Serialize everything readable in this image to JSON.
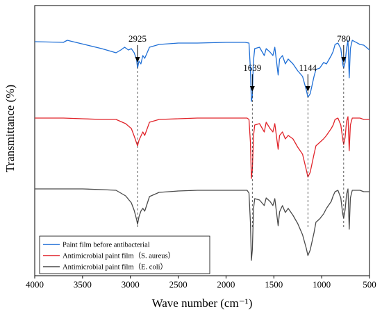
{
  "chart_data": {
    "type": "line",
    "xlabel": "Wave number (cm⁻¹)",
    "ylabel": "Transmittance (%)",
    "xlim": [
      4000,
      500
    ],
    "x_reversed": true,
    "x_ticks": [
      4000,
      3500,
      3000,
      2500,
      2000,
      1500,
      1000,
      500
    ],
    "y_ticks_shown": false,
    "grid": false,
    "legend_position": "bottom-left",
    "series": [
      {
        "name": "Paint film before antibacterial",
        "color": "#1f6fd6",
        "baseline": 60,
        "points": [
          [
            4000,
            60
          ],
          [
            3700,
            61
          ],
          [
            3660,
            58
          ],
          [
            3600,
            60
          ],
          [
            3450,
            65
          ],
          [
            3300,
            70
          ],
          [
            3200,
            74
          ],
          [
            3150,
            76
          ],
          [
            3100,
            72
          ],
          [
            3060,
            68
          ],
          [
            3020,
            72
          ],
          [
            2990,
            70
          ],
          [
            2960,
            76
          ],
          [
            2935,
            86
          ],
          [
            2925,
            98
          ],
          [
            2910,
            88
          ],
          [
            2890,
            92
          ],
          [
            2870,
            80
          ],
          [
            2850,
            84
          ],
          [
            2800,
            68
          ],
          [
            2700,
            64
          ],
          [
            2500,
            62
          ],
          [
            2300,
            62
          ],
          [
            2000,
            61
          ],
          [
            1800,
            61
          ],
          [
            1760,
            62
          ],
          [
            1745,
            100
          ],
          [
            1735,
            146
          ],
          [
            1725,
            140
          ],
          [
            1715,
            90
          ],
          [
            1700,
            70
          ],
          [
            1650,
            68
          ],
          [
            1600,
            80
          ],
          [
            1580,
            70
          ],
          [
            1540,
            75
          ],
          [
            1510,
            80
          ],
          [
            1490,
            68
          ],
          [
            1455,
            108
          ],
          [
            1440,
            85
          ],
          [
            1410,
            80
          ],
          [
            1380,
            92
          ],
          [
            1350,
            85
          ],
          [
            1300,
            92
          ],
          [
            1250,
            102
          ],
          [
            1200,
            110
          ],
          [
            1160,
            130
          ],
          [
            1144,
            140
          ],
          [
            1120,
            135
          ],
          [
            1080,
            110
          ],
          [
            1060,
            100
          ],
          [
            1020,
            98
          ],
          [
            980,
            90
          ],
          [
            950,
            92
          ],
          [
            900,
            80
          ],
          [
            880,
            74
          ],
          [
            860,
            64
          ],
          [
            830,
            62
          ],
          [
            800,
            70
          ],
          [
            780,
            92
          ],
          [
            770,
            98
          ],
          [
            755,
            90
          ],
          [
            740,
            70
          ],
          [
            725,
            58
          ],
          [
            712,
            112
          ],
          [
            700,
            70
          ],
          [
            680,
            58
          ],
          [
            600,
            64
          ],
          [
            560,
            65
          ],
          [
            500,
            72
          ]
        ]
      },
      {
        "name": "Antimicrobial paint film（S. aureus）",
        "color": "#e1242a",
        "baseline": 170,
        "points": [
          [
            4000,
            170
          ],
          [
            3700,
            170
          ],
          [
            3500,
            171
          ],
          [
            3300,
            172
          ],
          [
            3150,
            172
          ],
          [
            3050,
            178
          ],
          [
            2990,
            185
          ],
          [
            2960,
            196
          ],
          [
            2935,
            206
          ],
          [
            2925,
            210
          ],
          [
            2910,
            202
          ],
          [
            2890,
            196
          ],
          [
            2870,
            190
          ],
          [
            2850,
            195
          ],
          [
            2800,
            176
          ],
          [
            2700,
            172
          ],
          [
            2500,
            171
          ],
          [
            2300,
            170
          ],
          [
            2100,
            170
          ],
          [
            1900,
            170
          ],
          [
            1780,
            170
          ],
          [
            1760,
            172
          ],
          [
            1745,
            205
          ],
          [
            1735,
            257
          ],
          [
            1725,
            245
          ],
          [
            1712,
            195
          ],
          [
            1700,
            180
          ],
          [
            1650,
            178
          ],
          [
            1600,
            190
          ],
          [
            1580,
            176
          ],
          [
            1540,
            185
          ],
          [
            1510,
            190
          ],
          [
            1490,
            178
          ],
          [
            1455,
            215
          ],
          [
            1440,
            195
          ],
          [
            1410,
            190
          ],
          [
            1380,
            200
          ],
          [
            1350,
            195
          ],
          [
            1300,
            200
          ],
          [
            1250,
            212
          ],
          [
            1200,
            222
          ],
          [
            1160,
            245
          ],
          [
            1144,
            255
          ],
          [
            1120,
            248
          ],
          [
            1080,
            222
          ],
          [
            1060,
            210
          ],
          [
            1020,
            205
          ],
          [
            980,
            200
          ],
          [
            950,
            195
          ],
          [
            900,
            185
          ],
          [
            880,
            180
          ],
          [
            860,
            172
          ],
          [
            830,
            170
          ],
          [
            800,
            180
          ],
          [
            780,
            200
          ],
          [
            770,
            208
          ],
          [
            755,
            198
          ],
          [
            740,
            175
          ],
          [
            725,
            168
          ],
          [
            712,
            217
          ],
          [
            700,
            180
          ],
          [
            680,
            170
          ],
          [
            600,
            170
          ],
          [
            560,
            172
          ],
          [
            500,
            172
          ]
        ]
      },
      {
        "name": "Antimicrobial paint film（E. coli）",
        "color": "#4a4a4a",
        "baseline": 272,
        "points": [
          [
            4000,
            272
          ],
          [
            3700,
            272
          ],
          [
            3500,
            272
          ],
          [
            3300,
            273
          ],
          [
            3150,
            274
          ],
          [
            3050,
            282
          ],
          [
            2990,
            292
          ],
          [
            2960,
            303
          ],
          [
            2935,
            316
          ],
          [
            2925,
            323
          ],
          [
            2910,
            312
          ],
          [
            2890,
            304
          ],
          [
            2870,
            300
          ],
          [
            2850,
            304
          ],
          [
            2800,
            283
          ],
          [
            2700,
            277
          ],
          [
            2500,
            275
          ],
          [
            2300,
            274
          ],
          [
            2100,
            274
          ],
          [
            1900,
            274
          ],
          [
            1780,
            274
          ],
          [
            1760,
            278
          ],
          [
            1745,
            320
          ],
          [
            1735,
            375
          ],
          [
            1725,
            360
          ],
          [
            1712,
            300
          ],
          [
            1700,
            286
          ],
          [
            1650,
            288
          ],
          [
            1600,
            296
          ],
          [
            1580,
            285
          ],
          [
            1540,
            290
          ],
          [
            1510,
            296
          ],
          [
            1490,
            286
          ],
          [
            1455,
            325
          ],
          [
            1440,
            305
          ],
          [
            1410,
            296
          ],
          [
            1380,
            306
          ],
          [
            1350,
            300
          ],
          [
            1300,
            310
          ],
          [
            1250,
            322
          ],
          [
            1200,
            338
          ],
          [
            1160,
            358
          ],
          [
            1144,
            368
          ],
          [
            1120,
            360
          ],
          [
            1080,
            335
          ],
          [
            1060,
            320
          ],
          [
            1020,
            315
          ],
          [
            980,
            308
          ],
          [
            950,
            300
          ],
          [
            900,
            290
          ],
          [
            880,
            282
          ],
          [
            860,
            276
          ],
          [
            830,
            274
          ],
          [
            800,
            285
          ],
          [
            780,
            308
          ],
          [
            770,
            314
          ],
          [
            755,
            302
          ],
          [
            740,
            280
          ],
          [
            725,
            272
          ],
          [
            712,
            330
          ],
          [
            700,
            285
          ],
          [
            680,
            274
          ],
          [
            600,
            274
          ],
          [
            560,
            276
          ],
          [
            500,
            276
          ]
        ]
      }
    ],
    "annotations": [
      {
        "label": "2925",
        "x": 2925
      },
      {
        "label": "1639",
        "x": 1725
      },
      {
        "label": "1144",
        "x": 1144
      },
      {
        "label": "780",
        "x": 770
      }
    ]
  }
}
